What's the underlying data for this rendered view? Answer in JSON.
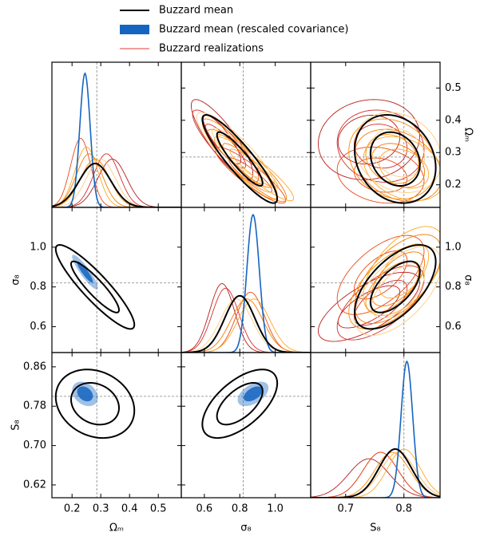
{
  "chart_data": {
    "type": "corner",
    "truth_line": {
      "color": "#808080",
      "dash": "3,2"
    },
    "parameters": [
      {
        "label": "Ωₘ",
        "xlim": [
          0.13,
          0.58
        ],
        "ylim": [
          0.13,
          0.58
        ],
        "dlim": [
          0,
          24
        ],
        "truth": 0.286,
        "xticks": [
          0.2,
          0.3,
          0.4,
          0.5
        ],
        "yticks": [
          0.2,
          0.3,
          0.4,
          0.5
        ]
      },
      {
        "label": "σ₈",
        "xlim": [
          0.47,
          1.2
        ],
        "ylim": [
          0.47,
          1.2
        ],
        "dlim": [
          0,
          12
        ],
        "truth": 0.82,
        "xticks": [
          0.6,
          0.8,
          {
            "value": 1.0,
            "label": "1.0"
          }
        ],
        "yticks": [
          0.6,
          0.8,
          {
            "value": 1.0,
            "label": "1.0"
          }
        ]
      },
      {
        "label": "S₈",
        "xlim": [
          0.64,
          0.862
        ],
        "ylim": [
          0.594,
          0.889
        ],
        "dlim": [
          0,
          42.5
        ],
        "truth": 0.8,
        "xticks": [
          0.7,
          0.8
        ],
        "yticks": [
          0.62,
          {
            "value": 0.7,
            "label": "0.70"
          },
          0.78,
          0.86
        ]
      }
    ],
    "series": [
      {
        "name": "Buzzard mean",
        "color": "#000000",
        "triangle": "all",
        "mean": [
          0.28,
          0.8,
          0.785
        ],
        "sd": [
          0.055,
          0.085,
          0.028
        ],
        "corr": [
          -0.9,
          -0.2,
          0.6
        ]
      },
      {
        "name": "Buzzard mean (rescaled covariance)",
        "color": "#1565c0",
        "triangle": "lower",
        "fill": true,
        "mean": [
          0.245,
          0.875,
          0.805
        ],
        "sd": [
          0.018,
          0.035,
          0.01
        ],
        "corr": [
          -0.9,
          -0.3,
          0.5
        ]
      },
      {
        "name": "Buzzard realizations",
        "color": "#e53935",
        "triangle": "upper",
        "realizations": [
          {
            "color": "#b71c1c",
            "mean": [
              0.34,
              0.7,
              0.74
            ],
            "sd": [
              0.05,
              0.07,
              0.035
            ],
            "corr": [
              -0.85,
              0.1,
              0.7
            ]
          },
          {
            "color": "#d32f2f",
            "mean": [
              0.32,
              0.72,
              0.76
            ],
            "sd": [
              0.045,
              0.075,
              0.03
            ],
            "corr": [
              -0.88,
              -0.1,
              0.65
            ]
          },
          {
            "color": "#e64a19",
            "mean": [
              0.23,
              0.86,
              0.76
            ],
            "sd": [
              0.035,
              0.08,
              0.03
            ],
            "corr": [
              -0.9,
              -0.2,
              0.6
            ]
          },
          {
            "color": "#f57c00",
            "mean": [
              0.26,
              0.84,
              0.79
            ],
            "sd": [
              0.045,
              0.09,
              0.03
            ],
            "corr": [
              -0.9,
              -0.3,
              0.6
            ]
          },
          {
            "color": "#fb8c00",
            "mean": [
              0.28,
              0.8,
              0.78
            ],
            "sd": [
              0.05,
              0.085,
              0.03
            ],
            "corr": [
              -0.9,
              -0.2,
              0.6
            ]
          },
          {
            "color": "#ffa726",
            "mean": [
              0.25,
              0.88,
              0.8
            ],
            "sd": [
              0.04,
              0.09,
              0.028
            ],
            "corr": [
              -0.92,
              -0.3,
              0.55
            ]
          },
          {
            "color": "#ffcc80",
            "mean": [
              0.3,
              0.78,
              0.79
            ],
            "sd": [
              0.05,
              0.09,
              0.03
            ],
            "corr": [
              -0.88,
              -0.2,
              0.6
            ]
          }
        ]
      }
    ]
  }
}
